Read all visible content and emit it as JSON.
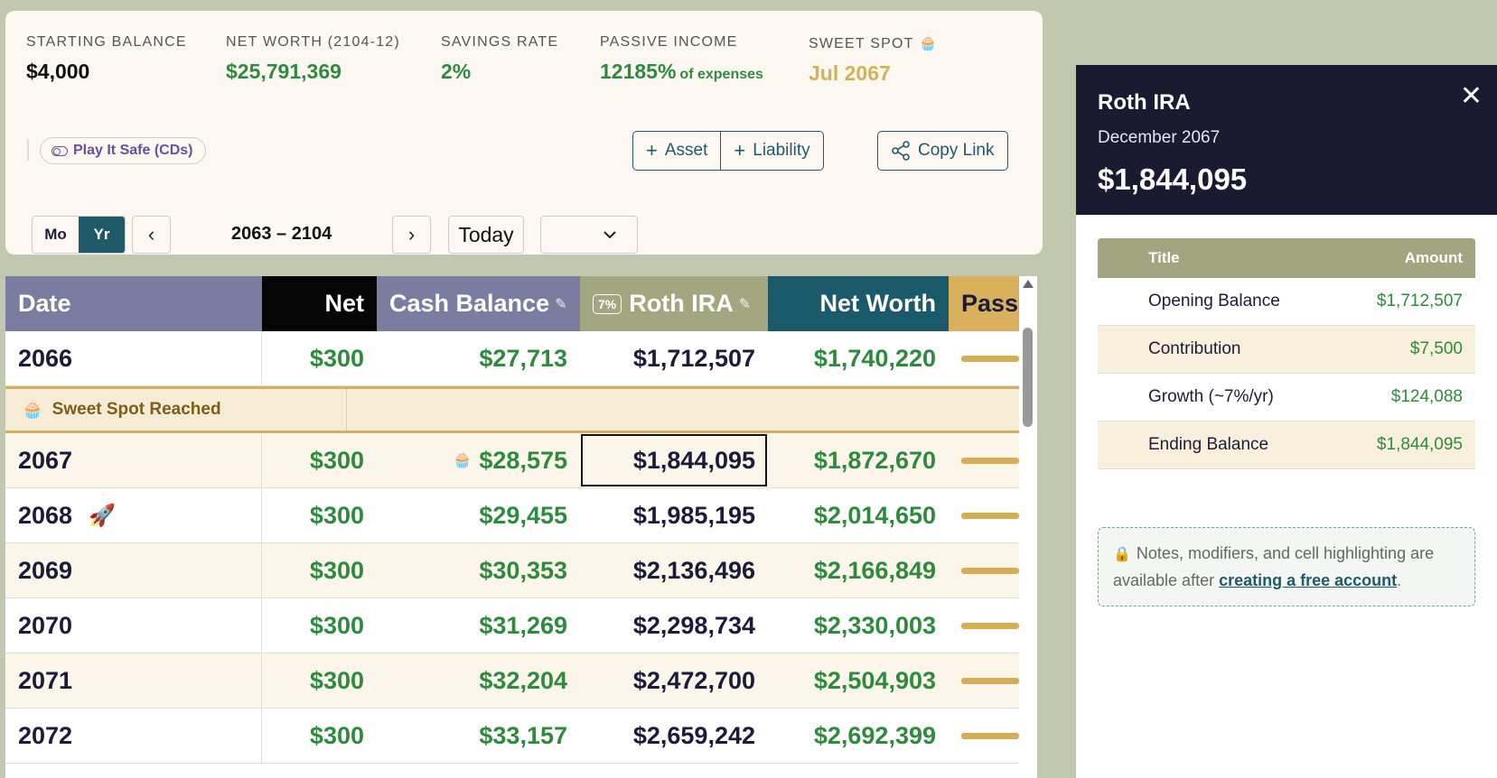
{
  "summary": {
    "starting_balance": {
      "label": "STARTING BALANCE",
      "value": "$4,000"
    },
    "net_worth": {
      "label": "NET WORTH (2104-12)",
      "value": "$25,791,369"
    },
    "savings_rate": {
      "label": "SAVINGS RATE",
      "value": "2%"
    },
    "passive_income": {
      "label": "PASSIVE INCOME",
      "value": "12185%",
      "suffix": "of expenses"
    },
    "sweet_spot": {
      "label": "SWEET SPOT",
      "value": "Jul 2067"
    }
  },
  "toolbar": {
    "play_safe": "Play It Safe (CDs)",
    "add_asset": "Asset",
    "add_liability": "Liability",
    "copy_link": "Copy Link",
    "mode_month": "Mo",
    "mode_year": "Yr",
    "range": "2063 – 2104",
    "today": "Today",
    "select_value": ""
  },
  "table": {
    "headers": {
      "date": "Date",
      "net": "Net",
      "cash": "Cash Balance",
      "roth_rate": "7%",
      "roth": "Roth IRA",
      "networth": "Net Worth",
      "passive": "Pass"
    },
    "sweet_spot_banner": "Sweet Spot Reached",
    "rows": [
      {
        "year": "2066",
        "net": "$300",
        "cash": "$27,713",
        "roth": "$1,712,507",
        "networth": "$1,740,220"
      },
      {
        "year": "2067",
        "net": "$300",
        "cash": "$28,575",
        "roth": "$1,844,095",
        "networth": "$1,872,670"
      },
      {
        "year": "2068",
        "net": "$300",
        "cash": "$29,455",
        "roth": "$1,985,195",
        "networth": "$2,014,650"
      },
      {
        "year": "2069",
        "net": "$300",
        "cash": "$30,353",
        "roth": "$2,136,496",
        "networth": "$2,166,849"
      },
      {
        "year": "2070",
        "net": "$300",
        "cash": "$31,269",
        "roth": "$2,298,734",
        "networth": "$2,330,003"
      },
      {
        "year": "2071",
        "net": "$300",
        "cash": "$32,204",
        "roth": "$2,472,700",
        "networth": "$2,504,903"
      },
      {
        "year": "2072",
        "net": "$300",
        "cash": "$33,157",
        "roth": "$2,659,242",
        "networth": "$2,692,399"
      }
    ]
  },
  "panel": {
    "title": "Roth IRA",
    "subtitle": "December 2067",
    "amount": "$1,844,095",
    "ledger_headers": {
      "title": "Title",
      "amount": "Amount"
    },
    "ledger": [
      {
        "title": "Opening Balance",
        "amount": "$1,712,507"
      },
      {
        "title": "Contribution",
        "amount": "$7,500"
      },
      {
        "title": "Growth (~7%/yr)",
        "amount": "$124,088"
      },
      {
        "title": "Ending Balance",
        "amount": "$1,844,095"
      }
    ],
    "notice_text": "Notes, modifiers, and cell highlighting are available after",
    "notice_link": "creating a free account",
    "notice_end": "."
  },
  "icons": {
    "cupcake": "cupcake-icon",
    "rocket": "rocket-icon",
    "lock": "lock-icon",
    "share": "share-icon"
  },
  "colors": {
    "accent": "#1f5a6a",
    "positive": "#2e8b3e",
    "sweet": "#d4b254",
    "panel_dark": "#1a1a30"
  }
}
